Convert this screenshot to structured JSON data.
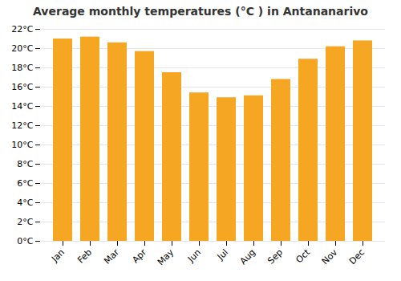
{
  "chart_data": {
    "type": "bar",
    "title": "Average monthly temperatures (°C ) in Antananarivo",
    "categories": [
      "Jan",
      "Feb",
      "Mar",
      "Apr",
      "May",
      "Jun",
      "Jul",
      "Aug",
      "Sep",
      "Oct",
      "Nov",
      "Dec"
    ],
    "values": [
      21.0,
      21.2,
      20.6,
      19.7,
      17.5,
      15.4,
      14.9,
      15.1,
      16.8,
      18.9,
      20.2,
      20.8
    ],
    "color": "#F5A623",
    "ylim": [
      0,
      22
    ],
    "yticks": [
      {
        "value": 0,
        "label": "0°C"
      },
      {
        "value": 2,
        "label": "2°C"
      },
      {
        "value": 4,
        "label": "4°C"
      },
      {
        "value": 6,
        "label": "6°C"
      },
      {
        "value": 8,
        "label": "8°C"
      },
      {
        "value": 10,
        "label": "10°C"
      },
      {
        "value": 12,
        "label": "12°C"
      },
      {
        "value": 14,
        "label": "14°C"
      },
      {
        "value": 16,
        "label": "16°C"
      },
      {
        "value": 18,
        "label": "18°C"
      },
      {
        "value": 20,
        "label": "20°C"
      },
      {
        "value": 22,
        "label": "22°C"
      }
    ],
    "grid": true
  }
}
